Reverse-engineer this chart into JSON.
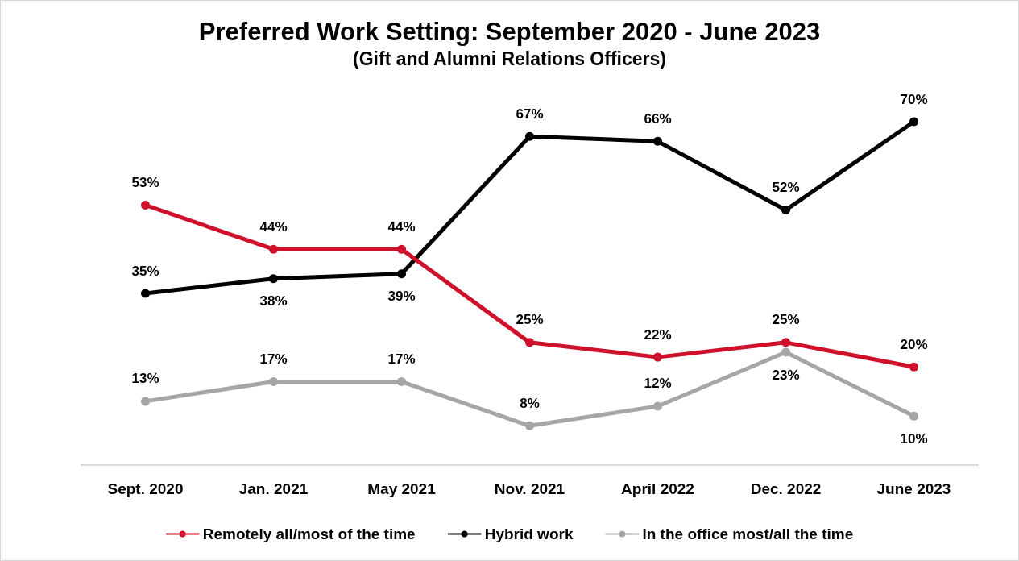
{
  "chart_data": {
    "type": "line",
    "title": "Preferred Work Setting: September 2020 - June 2023",
    "subtitle": "(Gift and Alumni Relations Officers)",
    "categories": [
      "Sept. 2020",
      "Jan. 2021",
      "May 2021",
      "Nov. 2021",
      "April 2022",
      "Dec. 2022",
      "June 2023"
    ],
    "series": [
      {
        "name": "Remotely all/most of the time",
        "color": "#d0112b",
        "values": [
          53,
          44,
          44,
          25,
          22,
          25,
          20
        ],
        "value_labels": [
          "53%",
          "44%",
          "44%",
          "25%",
          "22%",
          "25%",
          "20%"
        ]
      },
      {
        "name": "Hybrid work",
        "color": "#000000",
        "values": [
          35,
          38,
          39,
          67,
          66,
          52,
          70
        ],
        "value_labels": [
          "35%",
          "38%",
          "39%",
          "67%",
          "66%",
          "52%",
          "70%"
        ]
      },
      {
        "name": "In the office most/all the time",
        "color": "#a6a6a6",
        "values": [
          13,
          17,
          17,
          8,
          12,
          23,
          10
        ],
        "value_labels": [
          "13%",
          "17%",
          "17%",
          "8%",
          "12%",
          "23%",
          "10%"
        ]
      }
    ],
    "grid": false,
    "legend": "bottom",
    "marker": "circle",
    "line_style": "solid"
  }
}
